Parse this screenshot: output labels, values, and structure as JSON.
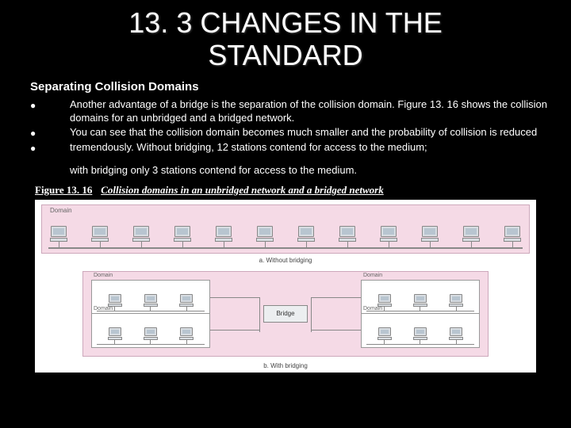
{
  "title": "13. 3 CHANGES IN THE STANDARD",
  "subtitle": "Separating Collision Domains",
  "bullets": [
    "Another advantage of a bridge is the separation of the collision domain. Figure 13. 16 shows the collision domains for an unbridged and a bridged network.",
    "You can see that the collision domain becomes much smaller and the probability of collision is reduced",
    "tremendously. Without bridging, 12 stations contend for access to the medium;"
  ],
  "closing": "with bridging only 3 stations contend for access to the medium.",
  "figure": {
    "label": "Figure 13. 16",
    "title": "Collision domains in an unbridged network and a bridged network",
    "panel_a": {
      "label": "Domain",
      "caption": "a. Without bridging",
      "stations": 12
    },
    "panel_b": {
      "caption": "b. With bridging",
      "bridge_label": "Bridge",
      "domains": [
        {
          "label": "Domain",
          "stations": 3
        },
        {
          "label": "Domain",
          "stations": 3
        },
        {
          "label": "Domain",
          "stations": 3
        },
        {
          "label": "Domain",
          "stations": 3
        }
      ]
    }
  },
  "colors": {
    "background": "#000000",
    "text": "#ffffff",
    "panel_fill": "#f5dae6",
    "panel_border": "#cda8bb",
    "device_fill": "#d8dde2",
    "device_border": "#888888",
    "figure_bg": "#ffffff"
  },
  "typography": {
    "title_fontsize": 36,
    "subtitle_fontsize": 15,
    "body_fontsize": 13,
    "figure_fontsize": 8,
    "font_family": "Arial"
  }
}
